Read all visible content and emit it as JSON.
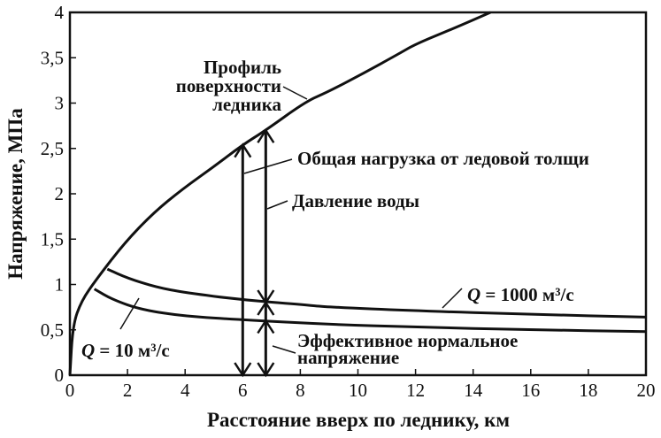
{
  "chart_data": {
    "type": "line",
    "xlabel": "Расстояние вверх по леднику, км",
    "ylabel": "Напряжение, МПа",
    "xlim": [
      0,
      20
    ],
    "ylim": [
      0,
      4
    ],
    "xticks": [
      "0",
      "2",
      "4",
      "6",
      "8",
      "10",
      "12",
      "14",
      "16",
      "18",
      "20"
    ],
    "yticks": [
      "0",
      "0,5",
      "1",
      "1,5",
      "2",
      "2,5",
      "3",
      "3,5",
      "4"
    ],
    "grid": false,
    "series": [
      {
        "name": "Профиль поверхности ледника",
        "x": [
          0,
          0.1,
          0.4,
          0.95,
          1.9,
          2.9,
          3.9,
          5,
          6,
          6.8,
          8.2,
          8.94,
          10.2,
          11.4,
          12,
          13.3,
          14.6
        ],
        "y": [
          0,
          0.55,
          0.82,
          1.07,
          1.46,
          1.79,
          2.05,
          2.3,
          2.54,
          2.7,
          3.02,
          3.12,
          3.33,
          3.54,
          3.65,
          3.82,
          4.0
        ]
      },
      {
        "name": "Q = 1000 м³/с",
        "x": [
          1.3,
          2,
          3,
          4,
          6,
          8,
          9,
          12,
          16,
          20
        ],
        "y": [
          1.17,
          1.07,
          0.97,
          0.91,
          0.83,
          0.78,
          0.75,
          0.71,
          0.67,
          0.64
        ]
      },
      {
        "name": "Q = 10 м³/с",
        "x": [
          0.85,
          1.5,
          2.5,
          4,
          6,
          9,
          12,
          16,
          20
        ],
        "y": [
          0.95,
          0.83,
          0.72,
          0.65,
          0.61,
          0.56,
          0.53,
          0.5,
          0.48
        ]
      }
    ],
    "annotations": {
      "surface": [
        "Профиль",
        "поверхности",
        "ледника"
      ],
      "total_load": "Общая нагрузка от ледовой толщи",
      "water_pressure": "Давление воды",
      "effective": [
        "Эффективное нормальное",
        "напряжение"
      ],
      "q1000": {
        "q": "Q",
        "rest": " = 1000 м³/с"
      },
      "q10": {
        "q": "Q",
        "rest": " = 10 м³/с"
      }
    },
    "arrows": [
      {
        "x": 6,
        "from": 0,
        "to": 2.54
      },
      {
        "x": 6.8,
        "from": 0.8,
        "to": 2.7
      },
      {
        "x": 6.8,
        "from": 0,
        "to": 0.6
      }
    ]
  }
}
